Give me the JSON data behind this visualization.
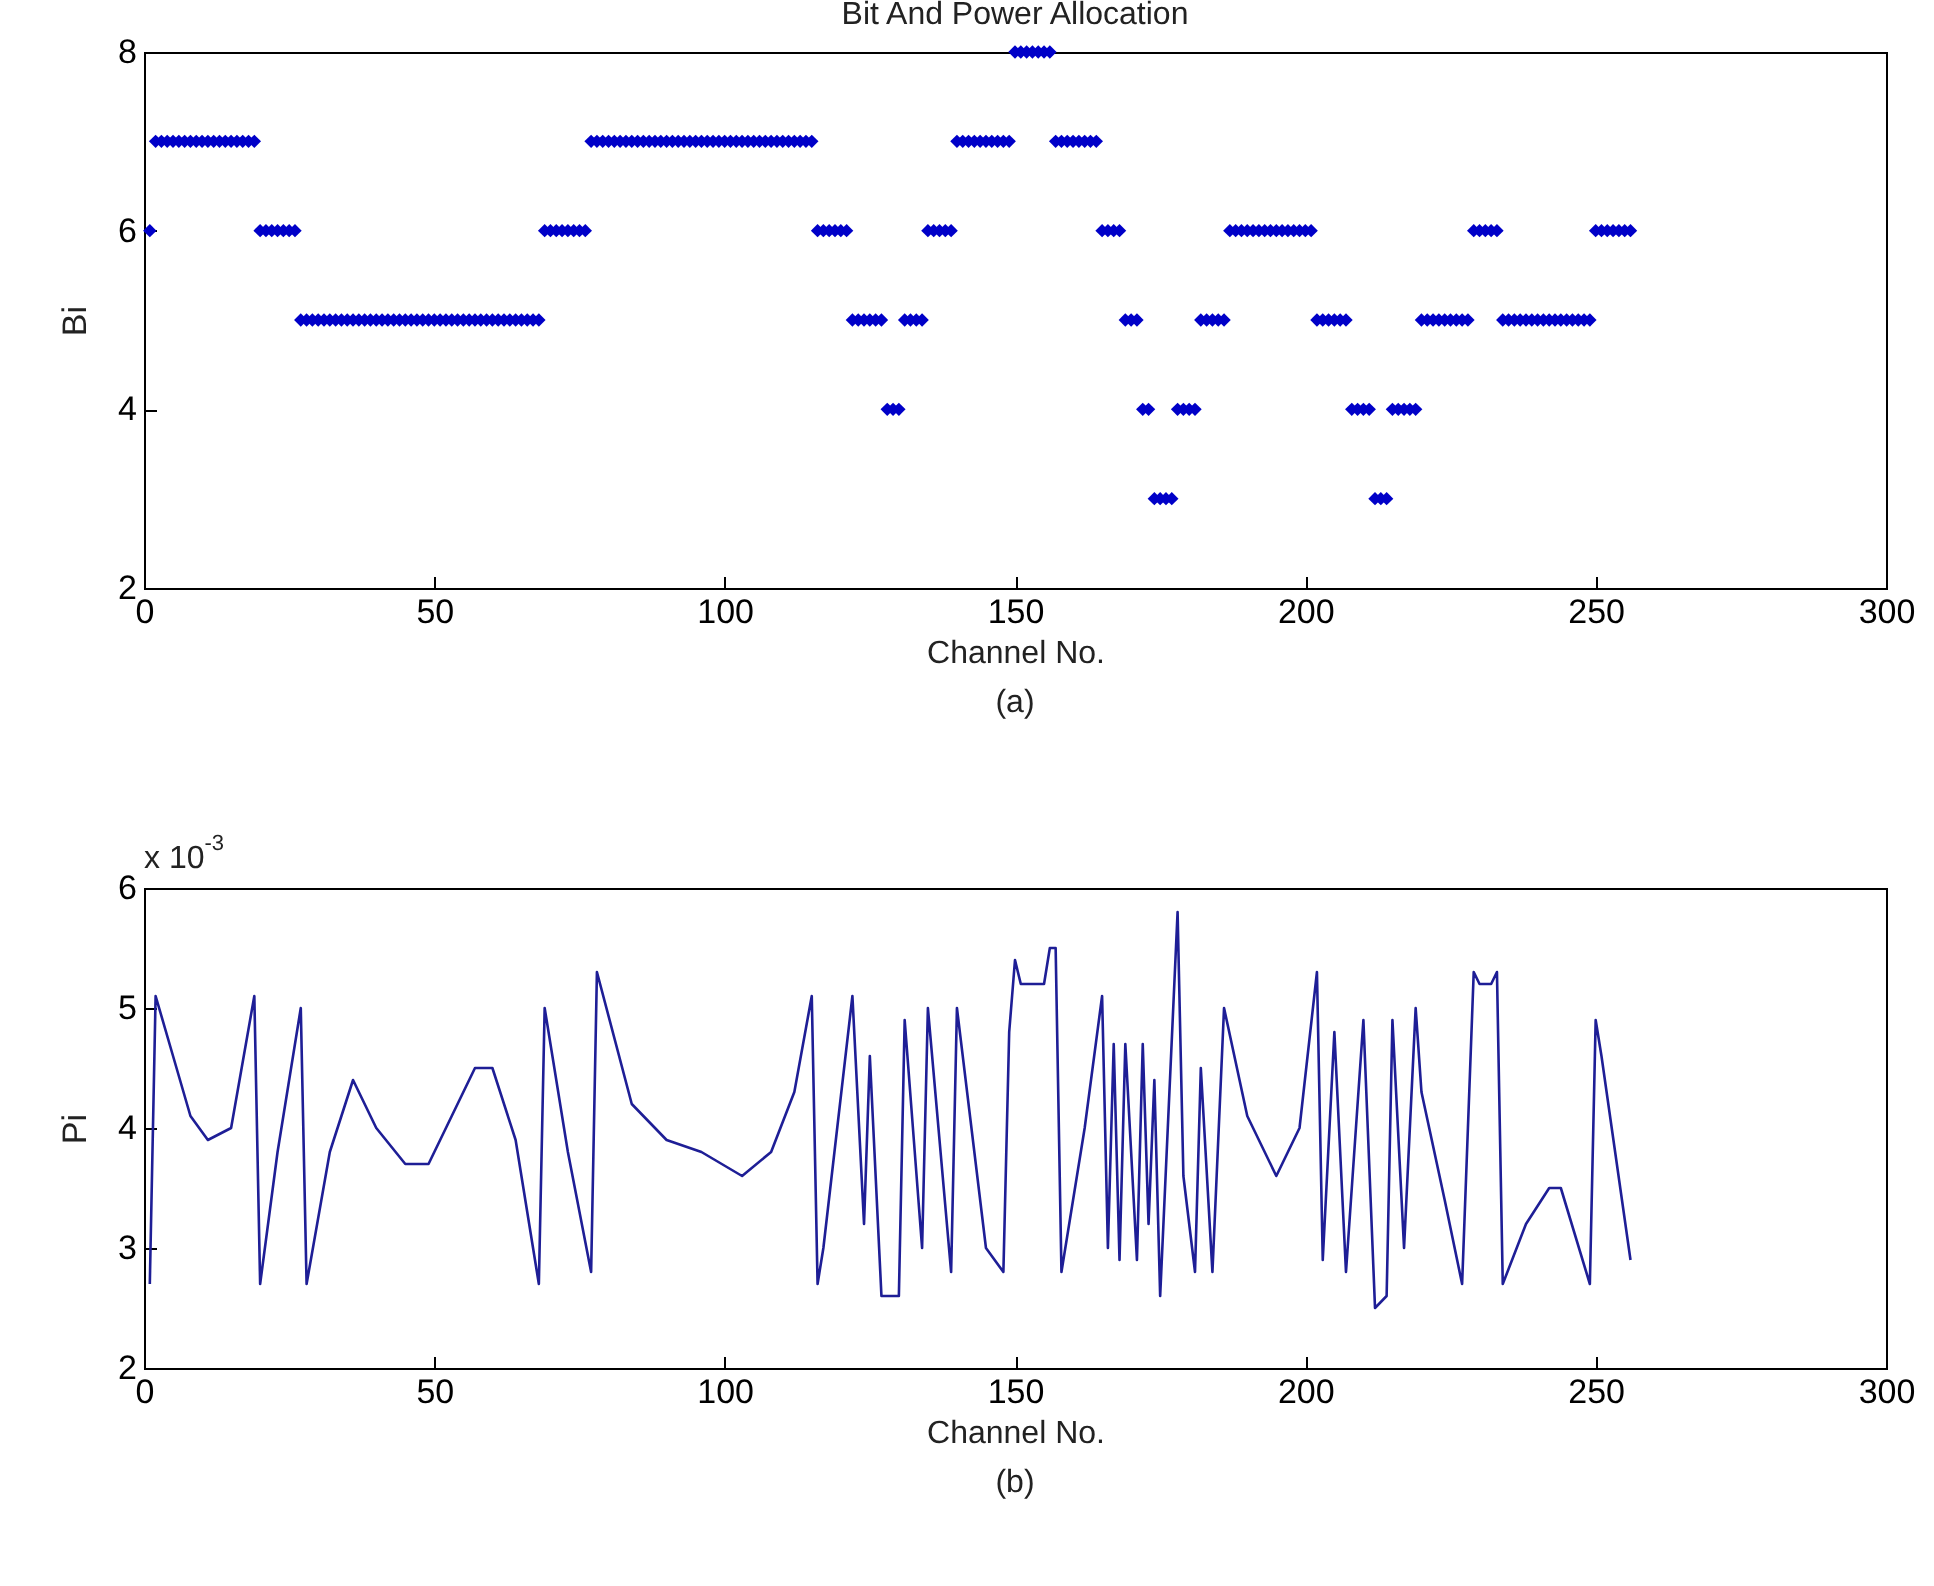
{
  "chart_data": [
    {
      "type": "scatter",
      "title": "Bit And Power Allocation",
      "xlabel": "Channel No.",
      "ylabel": "Bi",
      "annotations": [
        "(a)"
      ],
      "marker": "diamond",
      "color": "#0000c8",
      "x": [
        1,
        2,
        3,
        4,
        5,
        6,
        7,
        8,
        9,
        10,
        11,
        12,
        13,
        14,
        15,
        16,
        17,
        18,
        19,
        20,
        21,
        22,
        23,
        24,
        25,
        26,
        27,
        28,
        29,
        30,
        31,
        32,
        33,
        34,
        35,
        36,
        37,
        38,
        39,
        40,
        41,
        42,
        43,
        44,
        45,
        46,
        47,
        48,
        49,
        50,
        51,
        52,
        53,
        54,
        55,
        56,
        57,
        58,
        59,
        60,
        61,
        62,
        63,
        64,
        65,
        66,
        67,
        68,
        69,
        70,
        71,
        72,
        73,
        74,
        75,
        76,
        77,
        78,
        79,
        80,
        81,
        82,
        83,
        84,
        85,
        86,
        87,
        88,
        89,
        90,
        91,
        92,
        93,
        94,
        95,
        96,
        97,
        98,
        99,
        100,
        101,
        102,
        103,
        104,
        105,
        106,
        107,
        108,
        109,
        110,
        111,
        112,
        113,
        114,
        115,
        116,
        117,
        118,
        119,
        120,
        121,
        122,
        123,
        124,
        125,
        126,
        127,
        128,
        129,
        130,
        131,
        132,
        133,
        134,
        135,
        136,
        137,
        138,
        139,
        140,
        141,
        142,
        143,
        144,
        145,
        146,
        147,
        148,
        149,
        150,
        151,
        152,
        153,
        154,
        155,
        156,
        157,
        158,
        159,
        160,
        161,
        162,
        163,
        164,
        165,
        166,
        167,
        168,
        169,
        170,
        171,
        172,
        173,
        174,
        175,
        176,
        177,
        178,
        179,
        180,
        181,
        182,
        183,
        184,
        185,
        186,
        187,
        188,
        189,
        190,
        191,
        192,
        193,
        194,
        195,
        196,
        197,
        198,
        199,
        200,
        201,
        202,
        203,
        204,
        205,
        206,
        207,
        208,
        209,
        210,
        211,
        212,
        213,
        214,
        215,
        216,
        217,
        218,
        219,
        220,
        221,
        222,
        223,
        224,
        225,
        226,
        227,
        228,
        229,
        230,
        231,
        232,
        233,
        234,
        235,
        236,
        237,
        238,
        239,
        240,
        241,
        242,
        243,
        244,
        245,
        246,
        247,
        248,
        249,
        250,
        251,
        252,
        253,
        254,
        255,
        256
      ],
      "values": [
        6,
        7,
        7,
        7,
        7,
        7,
        7,
        7,
        7,
        7,
        7,
        7,
        7,
        7,
        7,
        7,
        7,
        7,
        7,
        6,
        6,
        6,
        6,
        6,
        6,
        6,
        5,
        5,
        5,
        5,
        5,
        5,
        5,
        5,
        5,
        5,
        5,
        5,
        5,
        5,
        5,
        5,
        5,
        5,
        5,
        5,
        5,
        5,
        5,
        5,
        5,
        5,
        5,
        5,
        5,
        5,
        5,
        5,
        5,
        5,
        5,
        5,
        5,
        5,
        5,
        5,
        5,
        5,
        6,
        6,
        6,
        6,
        6,
        6,
        6,
        6,
        7,
        7,
        7,
        7,
        7,
        7,
        7,
        7,
        7,
        7,
        7,
        7,
        7,
        7,
        7,
        7,
        7,
        7,
        7,
        7,
        7,
        7,
        7,
        7,
        7,
        7,
        7,
        7,
        7,
        7,
        7,
        7,
        7,
        7,
        7,
        7,
        7,
        7,
        7,
        6,
        6,
        6,
        6,
        6,
        6,
        5,
        5,
        5,
        5,
        5,
        5,
        4,
        4,
        4,
        5,
        5,
        5,
        5,
        6,
        6,
        6,
        6,
        6,
        7,
        7,
        7,
        7,
        7,
        7,
        7,
        7,
        7,
        7,
        8,
        8,
        8,
        8,
        8,
        8,
        8,
        7,
        7,
        7,
        7,
        7,
        7,
        7,
        7,
        6,
        6,
        6,
        6,
        5,
        5,
        5,
        4,
        4,
        3,
        3,
        3,
        3,
        4,
        4,
        4,
        4,
        5,
        5,
        5,
        5,
        5,
        6,
        6,
        6,
        6,
        6,
        6,
        6,
        6,
        6,
        6,
        6,
        6,
        6,
        6,
        6,
        5,
        5,
        5,
        5,
        5,
        5,
        4,
        4,
        4,
        4,
        3,
        3,
        3,
        4,
        4,
        4,
        4,
        4,
        5,
        5,
        5,
        5,
        5,
        5,
        5,
        5,
        5,
        6,
        6,
        6,
        6,
        6,
        5,
        5,
        5,
        5,
        5,
        5,
        5,
        5,
        5,
        5,
        5,
        5,
        5,
        5,
        5,
        5,
        6,
        6,
        6,
        6,
        6,
        6,
        6
      ],
      "xlim": [
        0,
        300
      ],
      "xticks": [
        0,
        50,
        100,
        150,
        200,
        250,
        300
      ],
      "ylim": [
        2,
        8
      ],
      "yticks": [
        2,
        4,
        6,
        8
      ]
    },
    {
      "type": "line",
      "xlabel": "Channel No.",
      "ylabel": "Pi",
      "annotations": [
        "x 10$^{-3}$",
        "(b)"
      ],
      "color": "#1e1e96",
      "line_style": "solid",
      "x": [
        1,
        2,
        5,
        8,
        11,
        15,
        19,
        20,
        23,
        27,
        28,
        32,
        36,
        40,
        45,
        49,
        53,
        57,
        60,
        64,
        68,
        69,
        73,
        77,
        78,
        84,
        90,
        96,
        103,
        108,
        112,
        115,
        116,
        117,
        122,
        124,
        125,
        127,
        130,
        131,
        134,
        135,
        139,
        140,
        145,
        148,
        149,
        150,
        151,
        155,
        156,
        157,
        158,
        162,
        165,
        166,
        167,
        168,
        169,
        171,
        172,
        173,
        174,
        175,
        178,
        179,
        181,
        182,
        184,
        186,
        190,
        195,
        199,
        202,
        203,
        205,
        207,
        210,
        212,
        214,
        215,
        217,
        219,
        220,
        224,
        227,
        229,
        230,
        232,
        233,
        234,
        238,
        242,
        244,
        249,
        250,
        251,
        256
      ],
      "values": [
        2.7,
        5.1,
        4.6,
        4.1,
        3.9,
        4.0,
        5.1,
        2.7,
        3.8,
        5.0,
        2.7,
        3.8,
        4.4,
        4.0,
        3.7,
        3.7,
        4.1,
        4.5,
        4.5,
        3.9,
        2.7,
        5.0,
        3.8,
        2.8,
        5.3,
        4.2,
        3.9,
        3.8,
        3.6,
        3.8,
        4.3,
        5.1,
        2.7,
        3.0,
        5.1,
        3.2,
        4.6,
        2.6,
        2.6,
        4.9,
        3.0,
        5.0,
        2.8,
        5.0,
        3.0,
        2.8,
        4.8,
        5.4,
        5.2,
        5.2,
        5.5,
        5.5,
        2.8,
        4.0,
        5.1,
        3.0,
        4.7,
        2.9,
        4.7,
        2.9,
        4.7,
        3.2,
        4.4,
        2.6,
        5.8,
        3.6,
        2.8,
        4.5,
        2.8,
        5.0,
        4.1,
        3.6,
        4.0,
        5.3,
        2.9,
        4.8,
        2.8,
        4.9,
        2.5,
        2.6,
        4.9,
        3.0,
        5.0,
        4.3,
        3.4,
        2.7,
        5.3,
        5.2,
        5.2,
        5.3,
        2.7,
        3.2,
        3.5,
        3.5,
        2.7,
        4.9,
        4.6,
        2.9
      ],
      "xlim": [
        0,
        300
      ],
      "xticks": [
        0,
        50,
        100,
        150,
        200,
        250,
        300
      ],
      "ylim": [
        2,
        6
      ],
      "yticks": [
        2,
        3,
        4,
        5,
        6
      ]
    }
  ]
}
